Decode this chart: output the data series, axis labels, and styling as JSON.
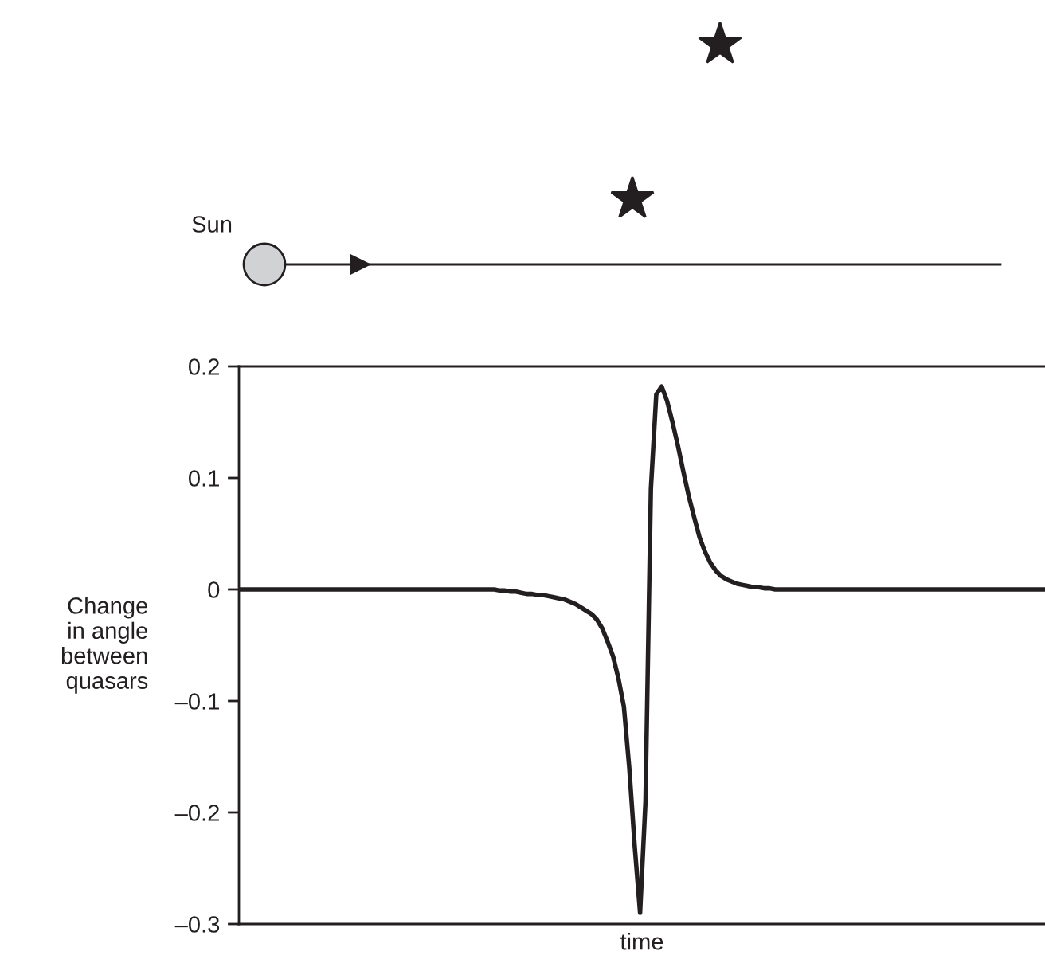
{
  "chart_data": {
    "type": "line",
    "xlabel": "time",
    "ylabel": "Change\nin angle\nbetween\nquasars",
    "annotations": [
      "Sun"
    ],
    "categories": [
      null,
      null,
      null,
      null,
      null,
      null,
      null,
      null,
      null,
      null,
      null,
      null,
      null,
      null,
      null,
      null,
      null,
      null,
      null,
      null,
      null,
      null,
      null,
      null,
      null,
      null,
      null,
      null,
      null,
      null,
      null,
      null,
      null,
      null,
      null,
      null,
      null,
      null,
      null,
      null,
      null,
      null,
      null,
      null,
      null,
      null,
      null,
      null,
      null,
      null,
      null,
      null,
      null,
      null,
      null,
      null,
      null,
      null,
      null,
      null,
      null,
      null,
      null,
      null,
      null,
      null,
      null,
      null,
      null,
      null,
      null,
      null,
      null,
      null,
      null,
      null,
      null,
      null,
      null,
      null,
      null,
      null,
      null,
      null,
      null,
      null,
      null,
      null,
      null,
      null,
      null,
      null,
      null,
      null,
      null,
      null,
      null,
      null,
      null,
      null,
      null,
      null,
      null,
      null,
      null,
      null,
      null,
      null,
      null,
      null,
      null,
      null,
      null,
      null,
      null,
      null,
      null,
      null,
      null,
      null,
      null,
      null,
      null,
      null,
      null,
      null,
      null,
      null,
      null,
      null,
      null,
      null,
      null,
      null,
      null,
      null,
      null,
      null,
      null,
      null,
      null,
      null,
      null,
      null,
      null,
      null,
      null,
      null,
      null,
      null
    ],
    "series": [
      {
        "color": "#231f20",
        "values": [
          0,
          0,
          0,
          0,
          0,
          0,
          0,
          0,
          0,
          0,
          0,
          0,
          0,
          0,
          0,
          0,
          0,
          0,
          0,
          0,
          0,
          0,
          0,
          0,
          0,
          0,
          0,
          0,
          0,
          0,
          0,
          0,
          0,
          0,
          0,
          0,
          0,
          0,
          0,
          0,
          0,
          0,
          0,
          0,
          0,
          0,
          0,
          0,
          -0.001,
          -0.001,
          -0.002,
          -0.002,
          -0.003,
          -0.004,
          -0.004,
          -0.005,
          -0.005,
          -0.006,
          -0.007,
          -0.008,
          -0.009,
          -0.011,
          -0.013,
          -0.016,
          -0.019,
          -0.022,
          -0.027,
          -0.035,
          -0.047,
          -0.06,
          -0.08,
          -0.105,
          -0.16,
          -0.23,
          -0.29,
          -0.19,
          0.09,
          0.175,
          0.182,
          0.169,
          0.15,
          0.129,
          0.106,
          0.084,
          0.065,
          0.047,
          0.034,
          0.024,
          0.017,
          0.012,
          0.009,
          0.007,
          0.005,
          0.004,
          0.003,
          0.002,
          0.002,
          0.001,
          0.001,
          0,
          0,
          0,
          0,
          0,
          0,
          0,
          0,
          0,
          0,
          0,
          0,
          0,
          0,
          0,
          0,
          0,
          0,
          0,
          0,
          0,
          0,
          0,
          0,
          0,
          0,
          0,
          0,
          0,
          0,
          0,
          0,
          0,
          0,
          0,
          0,
          0,
          0,
          0,
          0,
          0,
          0,
          0,
          0,
          0,
          0,
          0,
          0,
          0,
          0,
          0
        ]
      }
    ],
    "ylim": [
      -0.3,
      0.2
    ],
    "yticks": [
      {
        "value": -0.3,
        "label": "–0.3"
      },
      {
        "value": -0.2,
        "label": "–0.2"
      },
      {
        "value": -0.1,
        "label": "–0.1"
      },
      0,
      0.1,
      0.2
    ],
    "tick_labels": "y"
  }
}
